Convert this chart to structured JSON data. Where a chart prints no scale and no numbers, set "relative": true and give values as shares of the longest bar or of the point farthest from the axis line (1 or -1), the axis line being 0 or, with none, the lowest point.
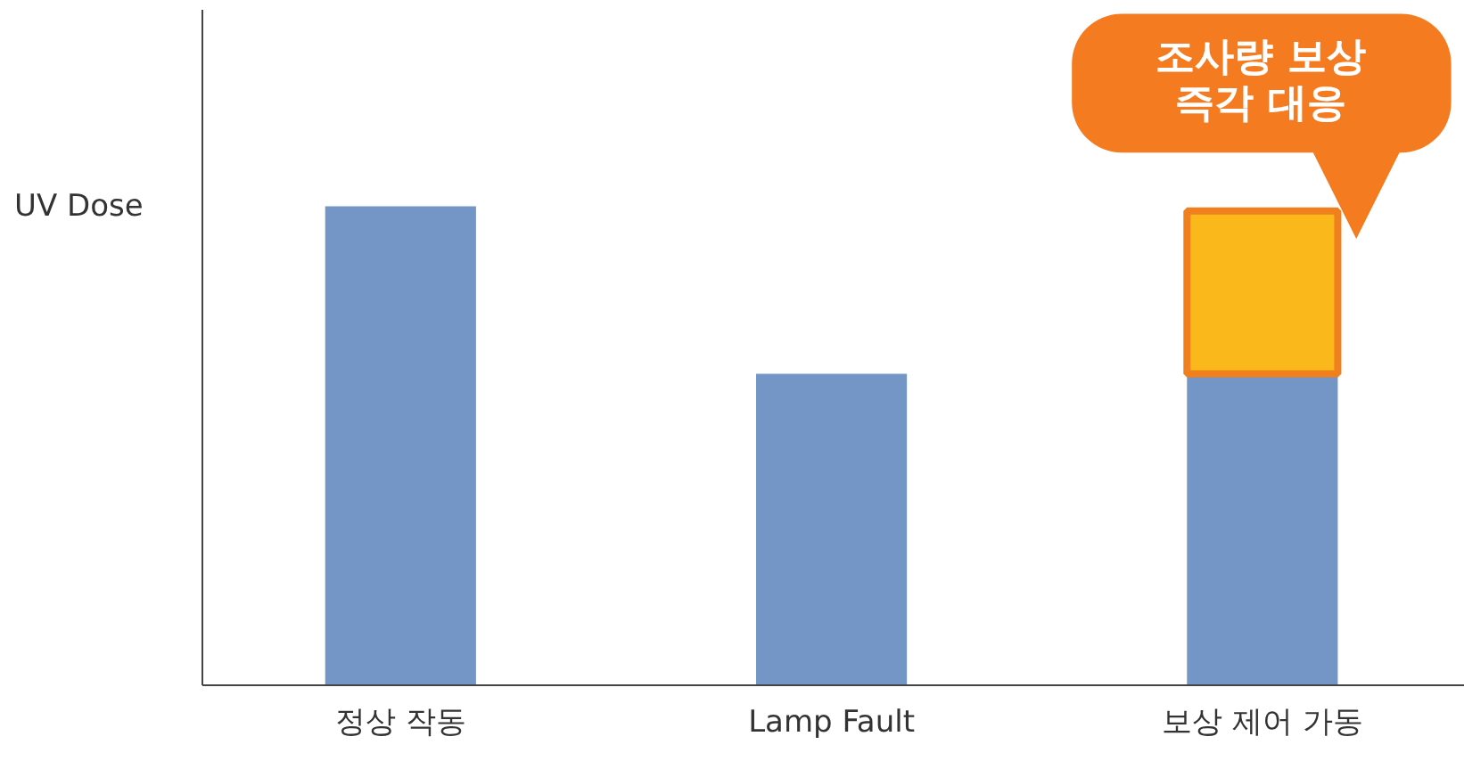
{
  "chart_data": {
    "type": "bar",
    "stacked": true,
    "relative": true,
    "ylabel": "UV Dose",
    "categories": [
      "정상 작동",
      "Lamp Fault",
      "보상 제어 가동"
    ],
    "series": [
      {
        "color": "#7396c6",
        "values": [
          1,
          0.65,
          0.65
        ]
      },
      {
        "color": "#fbb81a",
        "values": [
          null,
          null,
          0.34
        ]
      }
    ],
    "annotations": [
      {
        "text": "조사량 보상\n즉각 대응",
        "x": "보상 제어 가동",
        "y": 0.99
      }
    ],
    "grid": false
  }
}
